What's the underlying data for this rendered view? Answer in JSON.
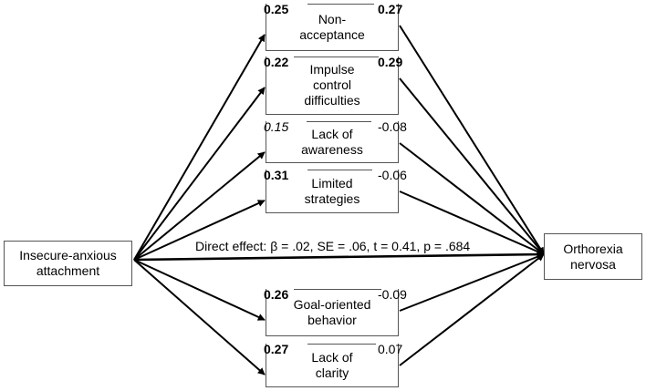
{
  "predictor": "Insecure-anxious attachment",
  "outcome": "Orthorexia\nnervosa",
  "direct_effect": "Direct effect: β = .02, SE = .06, t = 0.41, p = .684",
  "mediators": [
    {
      "label": "Non-\nacceptance",
      "a": "0.25",
      "a_style": "bold",
      "b": "0.27",
      "b_style": "bold"
    },
    {
      "label": "Impulse\ncontrol\ndifficulties",
      "a": "0.22",
      "a_style": "bold",
      "b": "0.29",
      "b_style": "bold"
    },
    {
      "label": "Lack of\nawareness",
      "a": "0.15",
      "a_style": "italic",
      "b": "-0.08",
      "b_style": "normal"
    },
    {
      "label": "Limited\nstrategies",
      "a": "0.31",
      "a_style": "bold",
      "b": "-0.06",
      "b_style": "normal"
    },
    {
      "label": "Goal-oriented\nbehavior",
      "a": "0.26",
      "a_style": "bold",
      "b": "-0.09",
      "b_style": "normal"
    },
    {
      "label": "Lack of\nclarity",
      "a": "0.27",
      "a_style": "bold",
      "b": "0.07",
      "b_style": "normal"
    }
  ]
}
